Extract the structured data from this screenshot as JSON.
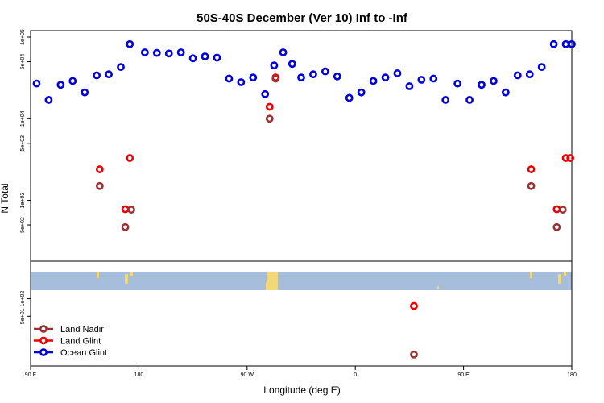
{
  "chart_data": {
    "type": "scatter",
    "title": "50S-40S December (Ver 10)   Inf to -Inf",
    "xlabel": "Longitude (deg E)",
    "ylabel": "N Total",
    "xlim": [
      90,
      450
    ],
    "x_ticks": [
      {
        "value": 90,
        "label": "90 E"
      },
      {
        "value": 162,
        "label": "180"
      },
      {
        "value": 234,
        "label": "90 W"
      },
      {
        "value": 306,
        "label": "0"
      },
      {
        "value": 378,
        "label": "90 E"
      },
      {
        "value": 450,
        "label": "180"
      }
    ],
    "top_panel": {
      "yscale": "log",
      "ylim": [
        180,
        120000
      ],
      "y_ticks": [
        {
          "value": 500,
          "label": "5e+02"
        },
        {
          "value": 1000,
          "label": "1e+03"
        },
        {
          "value": 5000,
          "label": "5e+03"
        },
        {
          "value": 10000,
          "label": "1e+04"
        },
        {
          "value": 50000,
          "label": "5e+04"
        },
        {
          "value": 100000,
          "label": "1e+05"
        }
      ]
    },
    "bottom_panel": {
      "yscale": "log",
      "ylim": [
        7,
        140
      ],
      "y_ticks": [
        {
          "value": 50,
          "label": "5e+01"
        },
        {
          "value": 100,
          "label": "1e+02"
        }
      ]
    },
    "series": [
      {
        "name": "Ocean Glint",
        "color": "#0000dd",
        "panel": "top",
        "x": [
          94,
          102,
          110,
          118,
          126,
          134,
          142,
          150,
          156,
          166,
          174,
          182,
          190,
          198,
          206,
          214,
          222,
          230,
          238,
          246,
          252,
          258,
          264,
          270,
          278,
          286,
          294,
          302,
          310,
          318,
          326,
          334,
          342,
          350,
          358,
          366,
          374,
          382,
          390,
          398,
          406,
          414,
          422,
          430,
          438,
          446,
          450
        ],
        "values": [
          27000,
          17000,
          26000,
          29000,
          21000,
          34000,
          35000,
          43000,
          82000,
          65000,
          64000,
          63000,
          65000,
          55000,
          58000,
          56000,
          31000,
          28000,
          32000,
          20000,
          45000,
          65000,
          47000,
          32000,
          35000,
          38000,
          33000,
          18000,
          21000,
          29000,
          32000,
          36000,
          25000,
          30000,
          31000,
          17000,
          27000,
          17000,
          26000,
          29000,
          21000,
          34000,
          35000,
          43000,
          82000,
          82000,
          82000
        ]
      },
      {
        "name": "Land Glint",
        "color": "#ee0000",
        "panel": "top",
        "x": [
          136,
          153,
          156,
          249,
          253,
          449
        ],
        "values": [
          2400,
          780,
          3300,
          14000,
          32000,
          3300
        ]
      },
      {
        "name": "Land Nadir",
        "color": "#993333",
        "panel": "top",
        "x": [
          136,
          153,
          157,
          249,
          253
        ],
        "values": [
          1500,
          470,
          770,
          10000,
          31000
        ]
      }
    ],
    "extra_points": [
      {
        "series": "Land Glint",
        "x": [
          423,
          440,
          446
        ],
        "values": [
          2400,
          780,
          3300
        ],
        "panel": "top"
      },
      {
        "series": "Land Nadir",
        "x": [
          423,
          440,
          444
        ],
        "values": [
          1500,
          470,
          770
        ],
        "panel": "top"
      },
      {
        "series": "Land Glint",
        "x": [
          345
        ],
        "values": [
          75
        ],
        "panel": "bottom"
      },
      {
        "series": "Land Nadir",
        "x": [
          345
        ],
        "values": [
          11
        ],
        "panel": "bottom"
      }
    ],
    "legend": {
      "position": "bottom-left",
      "entries": [
        "Land Nadir",
        "Land Glint",
        "Ocean Glint"
      ]
    },
    "map_strip": {
      "ocean_color": "#a6bddb",
      "land_color": "#f2d877"
    }
  }
}
